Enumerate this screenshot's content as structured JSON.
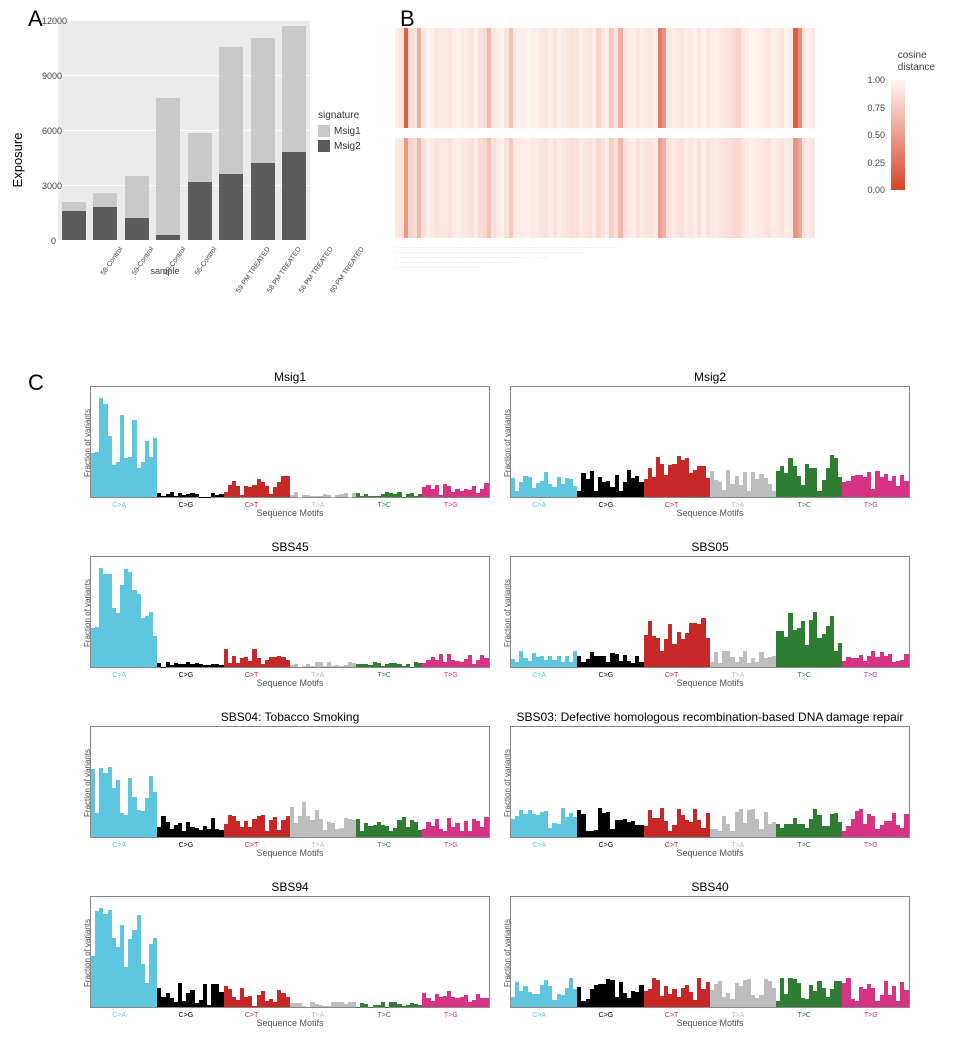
{
  "panelA": {
    "label": "A",
    "ylabel": "Exposure",
    "xlabel": "sample",
    "ymax": 12000,
    "yticks": [
      0,
      3000,
      6000,
      9000,
      12000
    ],
    "bg": "#ebebeb",
    "grid_color": "#ffffff",
    "categories": [
      "58-Control",
      "59-Control",
      "60-Control",
      "56-Control",
      "59 PM TREATED",
      "58 PM TREATED",
      "56 PM TREATED",
      "60 PM TREATED"
    ],
    "series": [
      {
        "name": "Msig2",
        "color": "#5b5b5b",
        "values": [
          1600,
          1800,
          1200,
          250,
          3150,
          3600,
          4200,
          4800
        ]
      },
      {
        "name": "Msig1",
        "color": "#c9c9c9",
        "values": [
          450,
          750,
          2300,
          7500,
          2700,
          6950,
          6800,
          6900
        ]
      }
    ],
    "legend_title": "signature"
  },
  "panelB": {
    "label": "B",
    "legend_title": "cosine\ndistance",
    "legend_ticks": [
      1.0,
      0.75,
      0.5,
      0.25,
      0.0
    ],
    "gradient_low": "#fff7f4",
    "gradient_high": "#d84326",
    "ncols": 96,
    "row1": [
      0.05,
      0.1,
      0.85,
      0.15,
      0.1,
      0.4,
      0.1,
      0.02,
      0.05,
      0.1,
      0.07,
      0.08,
      0.1,
      0.05,
      0.03,
      0.06,
      0.08,
      0.1,
      0.05,
      0.12,
      0.15,
      0.35,
      0.1,
      0.05,
      0.02,
      0.1,
      0.3,
      0.07,
      0.05,
      0.04,
      0.03,
      0.06,
      0.05,
      0.08,
      0.1,
      0.05,
      0.1,
      0.04,
      0.07,
      0.09,
      0.12,
      0.1,
      0.05,
      0.08,
      0.1,
      0.06,
      0.2,
      0.1,
      0.05,
      0.25,
      0.1,
      0.4,
      0.1,
      0.05,
      0.03,
      0.1,
      0.05,
      0.08,
      0.1,
      0.06,
      0.7,
      0.55,
      0.1,
      0.05,
      0.08,
      0.1,
      0.05,
      0.07,
      0.04,
      0.1,
      0.03,
      0.09,
      0.06,
      0.05,
      0.08,
      0.1,
      0.12,
      0.15,
      0.2,
      0.1,
      0.05,
      0.02,
      0.03,
      0.05,
      0.08,
      0.1,
      0.04,
      0.07,
      0.1,
      0.03,
      0.06,
      0.85,
      0.6,
      0.1,
      0.05,
      0.08
    ],
    "row2": [
      0.08,
      0.1,
      0.55,
      0.2,
      0.15,
      0.35,
      0.12,
      0.05,
      0.08,
      0.12,
      0.1,
      0.09,
      0.12,
      0.07,
      0.05,
      0.08,
      0.1,
      0.12,
      0.07,
      0.15,
      0.18,
      0.3,
      0.12,
      0.07,
      0.04,
      0.12,
      0.25,
      0.09,
      0.07,
      0.06,
      0.05,
      0.08,
      0.07,
      0.1,
      0.12,
      0.07,
      0.12,
      0.06,
      0.09,
      0.11,
      0.14,
      0.12,
      0.07,
      0.1,
      0.12,
      0.08,
      0.18,
      0.12,
      0.07,
      0.22,
      0.12,
      0.35,
      0.12,
      0.07,
      0.05,
      0.12,
      0.07,
      0.1,
      0.12,
      0.08,
      0.5,
      0.4,
      0.12,
      0.07,
      0.1,
      0.12,
      0.07,
      0.09,
      0.06,
      0.12,
      0.05,
      0.11,
      0.08,
      0.07,
      0.1,
      0.12,
      0.14,
      0.17,
      0.18,
      0.12,
      0.07,
      0.04,
      0.05,
      0.07,
      0.1,
      0.12,
      0.06,
      0.09,
      0.12,
      0.05,
      0.08,
      0.55,
      0.45,
      0.12,
      0.07,
      0.1
    ]
  },
  "panelC": {
    "label": "C",
    "ylab": "Fraction of variants",
    "xlab": "Sequence Motifs",
    "mut_categories": [
      {
        "label": "C>A",
        "color": "#5fc6e0"
      },
      {
        "label": "C>G",
        "color": "#000000"
      },
      {
        "label": "C>T",
        "color": "#c62828"
      },
      {
        "label": "T>A",
        "color": "#bdbdbd"
      },
      {
        "label": "T>C",
        "color": "#2e7d32"
      },
      {
        "label": "T>G",
        "color": "#d63384"
      }
    ],
    "ymax": 0.1,
    "signatures": [
      {
        "title": "Msig1",
        "profile": "ca_peak"
      },
      {
        "title": "Msig2",
        "profile": "flat_mix"
      },
      {
        "title": "SBS45",
        "profile": "ca_peak"
      },
      {
        "title": "SBS05",
        "profile": "ct_tc"
      },
      {
        "title": "SBS04: Tobacco Smoking",
        "profile": "ca_broad"
      },
      {
        "title": "SBS03: Defective homologous recombination-based DNA damage repair",
        "profile": "flat_all"
      },
      {
        "title": "SBS94",
        "profile": "ca_peak2"
      },
      {
        "title": "SBS40",
        "profile": "flat_all2"
      }
    ]
  }
}
